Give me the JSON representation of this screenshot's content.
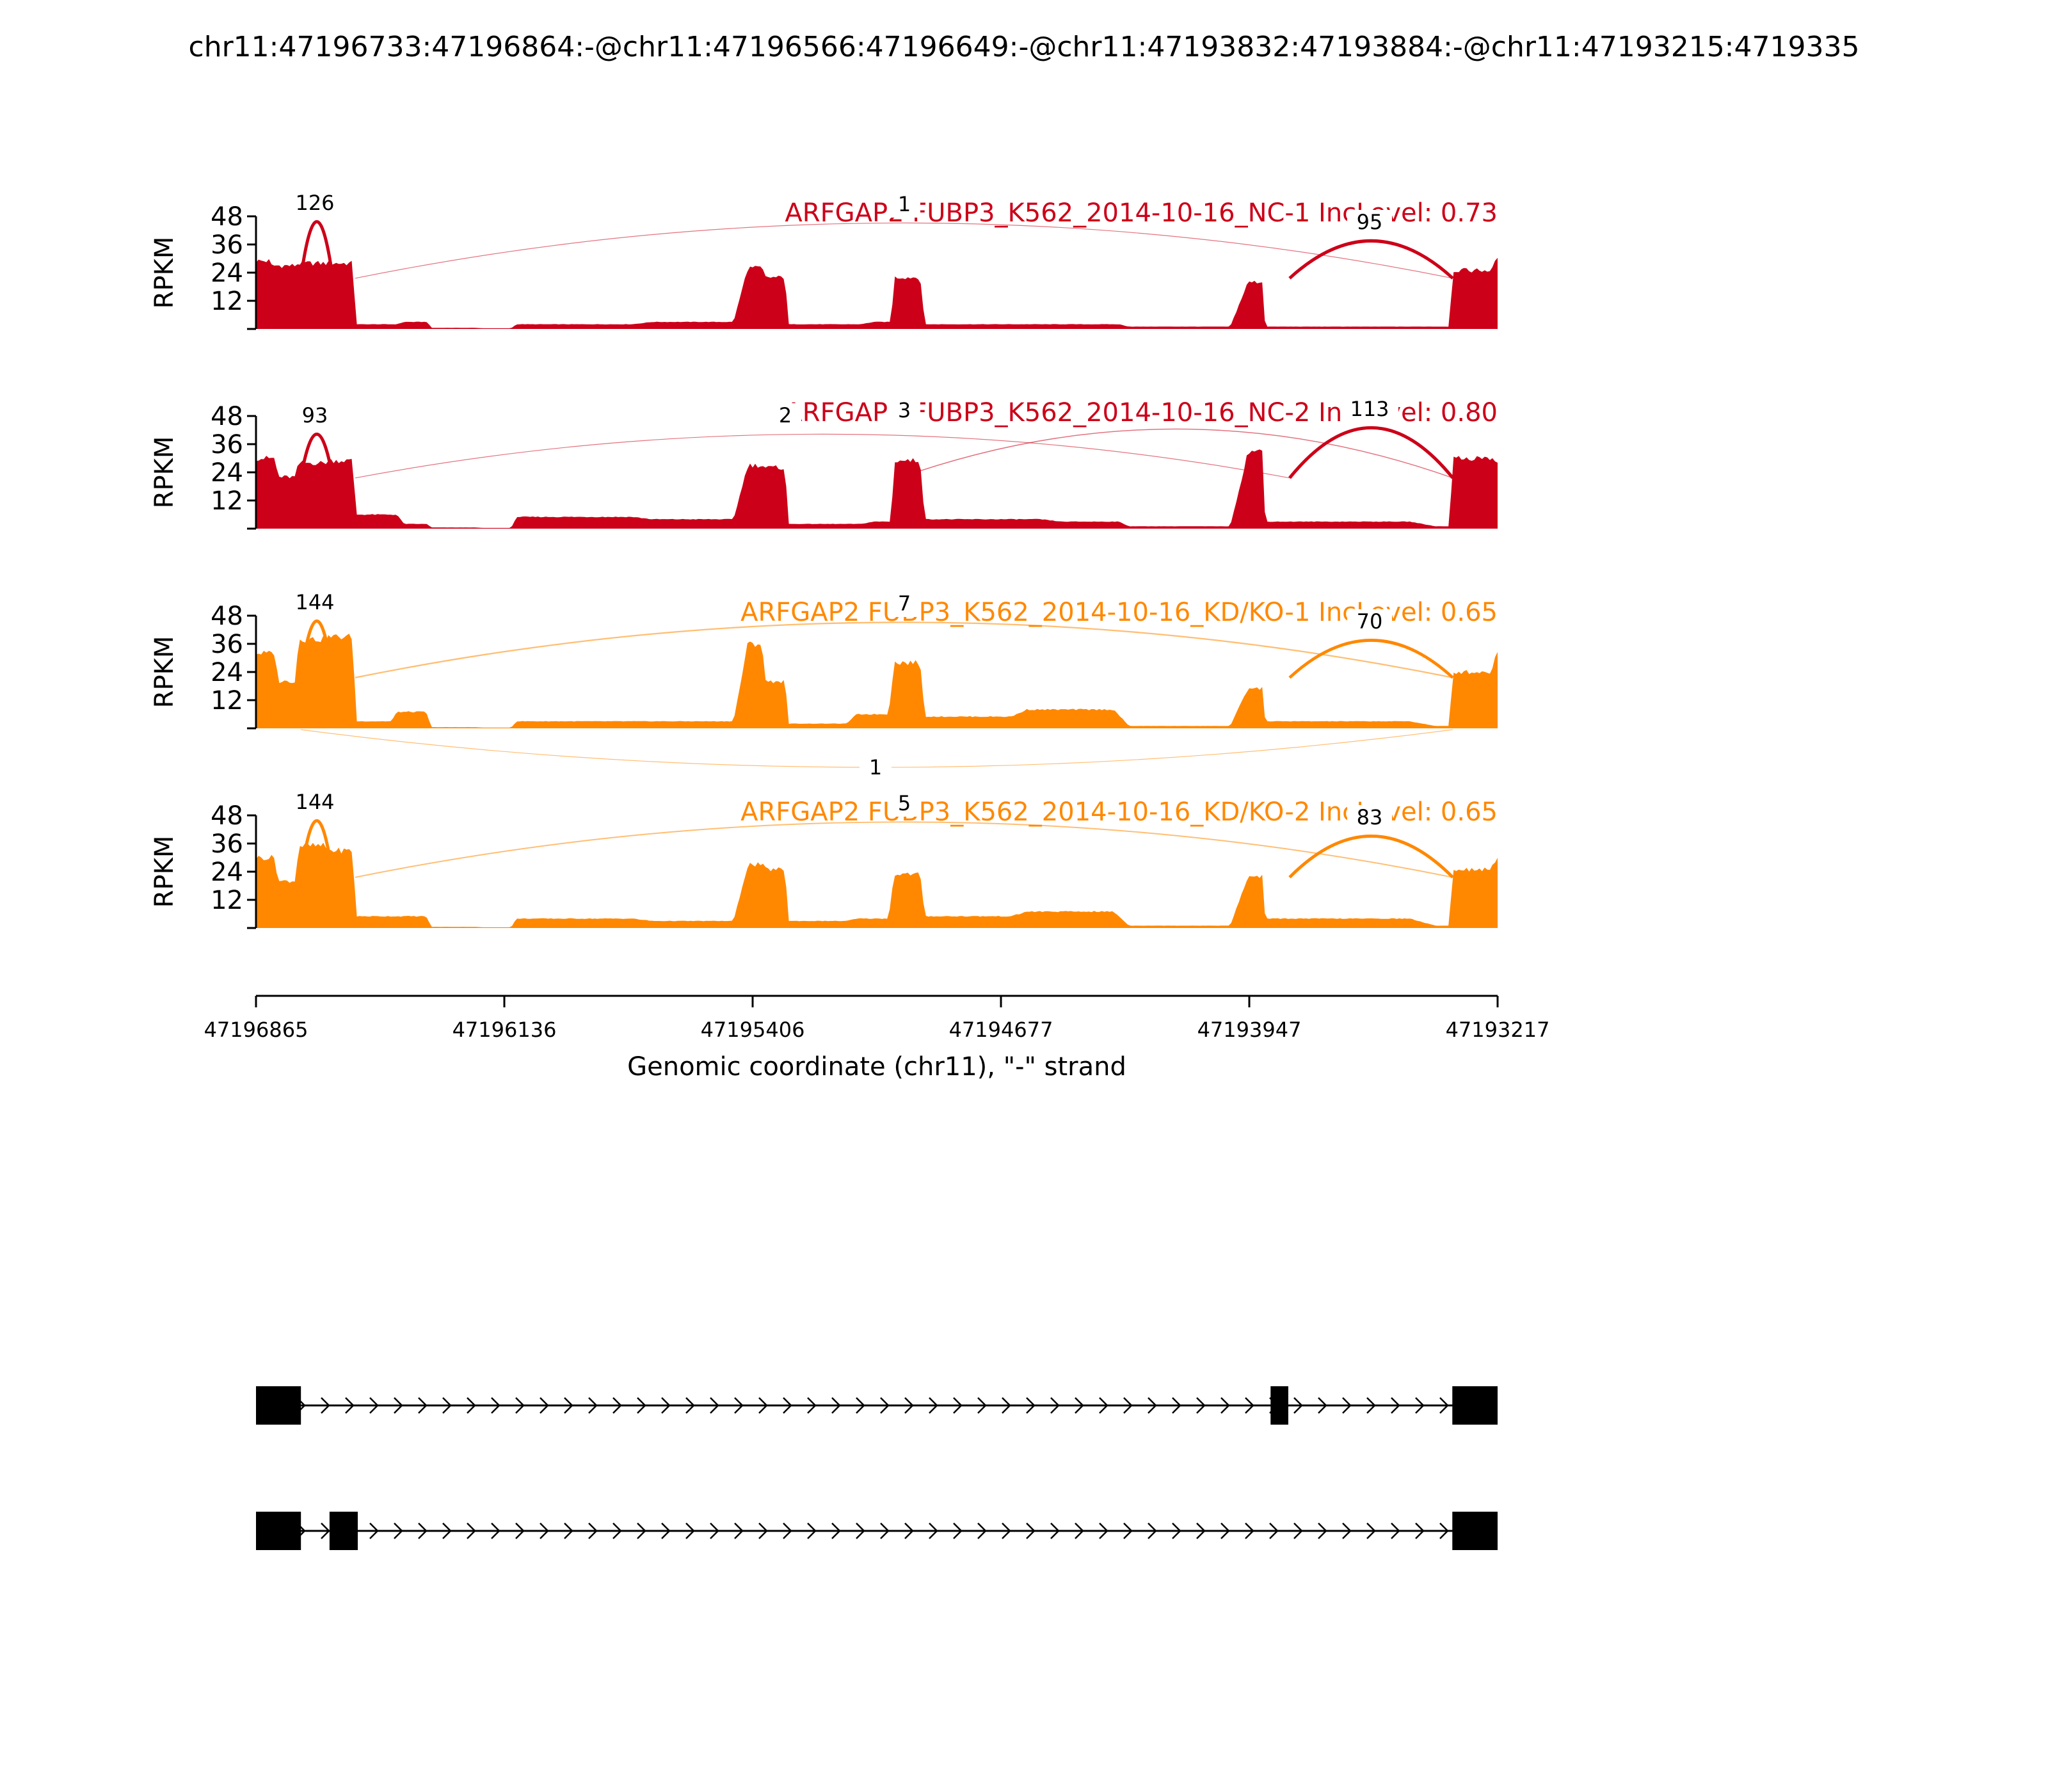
{
  "chart_data": {
    "type": "area",
    "title": "chr11:47196733:47196864:-@chr11:47196566:47196649:-@chr11:47193832:47193884:-@chr11:47193215:4719335",
    "xlabel": "Genomic coordinate (chr11), \"-\" strand",
    "ylabel": "RPKM",
    "ylim": [
      0,
      48
    ],
    "yticks": [
      "48",
      "36",
      "24",
      "12"
    ],
    "x_range": [
      47196865,
      47193217
    ],
    "xticks": [
      "47196865",
      "47196136",
      "47195406",
      "47194677",
      "47193947",
      "47193217"
    ],
    "colors": {
      "nc": "#cc0018",
      "kd": "#ff8800",
      "gene": "#000000"
    },
    "series": [
      {
        "name": "ARFGAP2 FUBP3_K562_2014-10-16_NC-1 IncLevel: 0.73",
        "color": "#cc0018",
        "coverage": [
          [
            47196865,
            29
          ],
          [
            47196820,
            27
          ],
          [
            47196740,
            28
          ],
          [
            47196650,
            28
          ],
          [
            47196570,
            2
          ],
          [
            47196430,
            3
          ],
          [
            47196350,
            0.5
          ],
          [
            47196200,
            0.3
          ],
          [
            47196100,
            2
          ],
          [
            47195700,
            3
          ],
          [
            47195420,
            26
          ],
          [
            47195370,
            22
          ],
          [
            47195300,
            2
          ],
          [
            47195050,
            3
          ],
          [
            47194990,
            22
          ],
          [
            47194900,
            2
          ],
          [
            47194500,
            2
          ],
          [
            47194300,
            1
          ],
          [
            47193950,
            20
          ],
          [
            47193900,
            1
          ],
          [
            47193400,
            1
          ],
          [
            47193350,
            25
          ],
          [
            47193217,
            30
          ]
        ],
        "junctions": [
          {
            "label": "126",
            "side": "above"
          },
          {
            "label": "1",
            "side": "above"
          },
          {
            "label": "95",
            "side": "above"
          }
        ]
      },
      {
        "name": "ARFGAP2 FUBP3_K562_2014-10-16_NC-2 IncLevel: 0.80",
        "color": "#cc0018",
        "coverage": [
          [
            47196865,
            30
          ],
          [
            47196800,
            22
          ],
          [
            47196740,
            28
          ],
          [
            47196650,
            29
          ],
          [
            47196570,
            6
          ],
          [
            47196430,
            2
          ],
          [
            47196350,
            0.5
          ],
          [
            47196200,
            0.3
          ],
          [
            47196100,
            5
          ],
          [
            47195700,
            4
          ],
          [
            47195420,
            27
          ],
          [
            47195370,
            26
          ],
          [
            47195300,
            2
          ],
          [
            47195050,
            3
          ],
          [
            47194990,
            29
          ],
          [
            47194900,
            4
          ],
          [
            47194500,
            3
          ],
          [
            47194300,
            1
          ],
          [
            47193950,
            33
          ],
          [
            47193900,
            3
          ],
          [
            47193400,
            1
          ],
          [
            47193350,
            30
          ],
          [
            47193217,
            28
          ]
        ],
        "junctions": [
          {
            "label": "93",
            "side": "above"
          },
          {
            "label": "2",
            "side": "above"
          },
          {
            "label": "3",
            "side": "above"
          },
          {
            "label": "113",
            "side": "above"
          }
        ]
      },
      {
        "name": "ARFGAP2 FUBP3_K562_2014-10-16_KD/KO-1 IncLevel: 0.65",
        "color": "#ff8800",
        "coverage": [
          [
            47196865,
            32
          ],
          [
            47196800,
            20
          ],
          [
            47196740,
            38
          ],
          [
            47196650,
            39
          ],
          [
            47196570,
            3
          ],
          [
            47196450,
            7
          ],
          [
            47196350,
            0.5
          ],
          [
            47196200,
            0.3
          ],
          [
            47196100,
            3
          ],
          [
            47195700,
            3
          ],
          [
            47195420,
            36
          ],
          [
            47195370,
            20
          ],
          [
            47195300,
            2
          ],
          [
            47195100,
            6
          ],
          [
            47194990,
            28
          ],
          [
            47194900,
            5
          ],
          [
            47194600,
            8
          ],
          [
            47194300,
            1
          ],
          [
            47193950,
            17
          ],
          [
            47193900,
            3
          ],
          [
            47193400,
            1
          ],
          [
            47193350,
            24
          ],
          [
            47193217,
            33
          ]
        ],
        "junctions": [
          {
            "label": "144",
            "side": "above"
          },
          {
            "label": "7",
            "side": "above"
          },
          {
            "label": "70",
            "side": "above"
          },
          {
            "label": "1",
            "side": "below"
          }
        ]
      },
      {
        "name": "ARFGAP2 FUBP3_K562_2014-10-16_KD/KO-2 IncLevel: 0.65",
        "color": "#ff8800",
        "coverage": [
          [
            47196865,
            30
          ],
          [
            47196800,
            20
          ],
          [
            47196740,
            35
          ],
          [
            47196650,
            33
          ],
          [
            47196570,
            5
          ],
          [
            47196450,
            5
          ],
          [
            47196350,
            0.5
          ],
          [
            47196200,
            0.3
          ],
          [
            47196100,
            4
          ],
          [
            47195700,
            3
          ],
          [
            47195420,
            27
          ],
          [
            47195370,
            25
          ],
          [
            47195300,
            3
          ],
          [
            47195100,
            4
          ],
          [
            47194990,
            23
          ],
          [
            47194900,
            5
          ],
          [
            47194600,
            7
          ],
          [
            47194300,
            1
          ],
          [
            47193950,
            22
          ],
          [
            47193900,
            4
          ],
          [
            47193400,
            1
          ],
          [
            47193350,
            25
          ],
          [
            47193217,
            29
          ]
        ],
        "junctions": [
          {
            "label": "144",
            "side": "above"
          },
          {
            "label": "5",
            "side": "above"
          },
          {
            "label": "83",
            "side": "above"
          }
        ]
      }
    ],
    "transcripts": [
      {
        "exons": [
          [
            47196865,
            47196733
          ],
          [
            47193884,
            47193832
          ],
          [
            47193350,
            47193217
          ]
        ]
      },
      {
        "exons": [
          [
            47196865,
            47196733
          ],
          [
            47196649,
            47196566
          ],
          [
            47193350,
            47193217
          ]
        ]
      }
    ]
  }
}
